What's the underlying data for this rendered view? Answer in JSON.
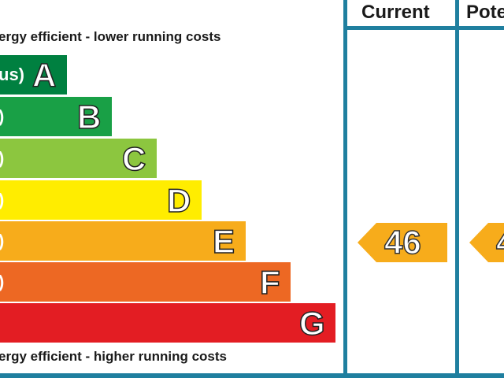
{
  "captions": {
    "top": "ergy efficient - lower running costs",
    "bottom": "ergy efficient - higher running costs"
  },
  "columns": {
    "current": "Current",
    "potential": "Pote"
  },
  "bands": [
    {
      "letter": "A",
      "range": "us)",
      "color": "#008040"
    },
    {
      "letter": "B",
      "range": ")",
      "color": "#19a046"
    },
    {
      "letter": "C",
      "range": ")",
      "color": "#8cc63f"
    },
    {
      "letter": "D",
      "range": ")",
      "color": "#ffed00"
    },
    {
      "letter": "E",
      "range": ")",
      "color": "#f7ac1b"
    },
    {
      "letter": "F",
      "range": ")",
      "color": "#ed6823"
    },
    {
      "letter": "G",
      "range": "",
      "color": "#e31d23"
    }
  ],
  "ratings": {
    "current": {
      "value": "46",
      "band": "E",
      "color": "#f7ac1b"
    },
    "potential": {
      "value": "4",
      "band": "E",
      "color": "#f7ac1b"
    }
  }
}
